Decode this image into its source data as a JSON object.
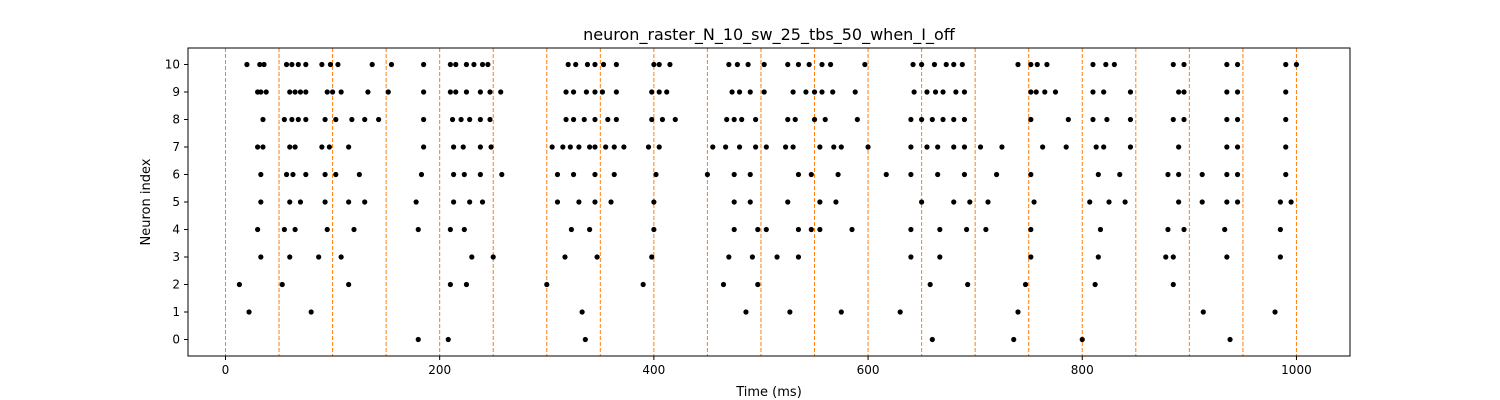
{
  "chart_data": {
    "type": "scatter",
    "title": "neuron_raster_N_10_sw_25_tbs_50_when_I_off",
    "xlabel": "Time (ms)",
    "ylabel": "Neuron index",
    "xlim": [
      -35,
      1050
    ],
    "ylim": [
      -0.6,
      10.6
    ],
    "x_ticks": [
      0,
      200,
      400,
      600,
      800,
      1000
    ],
    "y_ticks": [
      0,
      1,
      2,
      3,
      4,
      5,
      6,
      7,
      8,
      9,
      10
    ],
    "point_color": "#000000",
    "vline_color": "#ff7f0e",
    "vlines": [
      0,
      50,
      100,
      150,
      200,
      250,
      300,
      350,
      400,
      450,
      500,
      550,
      600,
      650,
      700,
      750,
      800,
      850,
      900,
      950,
      1000
    ],
    "series": [
      {
        "neuron": 0,
        "spikes": [
          180,
          208,
          336,
          660,
          736,
          800,
          938
        ]
      },
      {
        "neuron": 1,
        "spikes": [
          22,
          80,
          333,
          486,
          527,
          575,
          630,
          740,
          913,
          980
        ]
      },
      {
        "neuron": 2,
        "spikes": [
          13,
          53,
          115,
          210,
          225,
          300,
          390,
          465,
          497,
          658,
          693,
          747,
          812,
          885
        ]
      },
      {
        "neuron": 3,
        "spikes": [
          33,
          60,
          87,
          108,
          230,
          250,
          317,
          347,
          398,
          470,
          492,
          515,
          535,
          640,
          667,
          752,
          815,
          878,
          885,
          935,
          985
        ]
      },
      {
        "neuron": 4,
        "spikes": [
          30,
          55,
          65,
          95,
          120,
          180,
          210,
          223,
          323,
          340,
          400,
          475,
          497,
          505,
          535,
          547,
          555,
          585,
          640,
          667,
          692,
          710,
          752,
          817,
          880,
          895,
          933,
          985
        ]
      },
      {
        "neuron": 5,
        "spikes": [
          33,
          60,
          70,
          93,
          115,
          130,
          178,
          213,
          228,
          240,
          310,
          330,
          345,
          360,
          400,
          475,
          490,
          525,
          555,
          570,
          650,
          680,
          695,
          712,
          755,
          807,
          825,
          840,
          890,
          912,
          935,
          945,
          985,
          995
        ]
      },
      {
        "neuron": 6,
        "spikes": [
          33,
          57,
          63,
          75,
          93,
          103,
          125,
          183,
          213,
          223,
          238,
          258,
          310,
          325,
          345,
          363,
          402,
          450,
          475,
          490,
          535,
          547,
          572,
          617,
          640,
          665,
          690,
          720,
          752,
          815,
          835,
          880,
          890,
          912,
          935,
          945,
          990
        ]
      },
      {
        "neuron": 7,
        "spikes": [
          30,
          35,
          60,
          65,
          90,
          97,
          115,
          185,
          213,
          222,
          238,
          248,
          305,
          315,
          322,
          330,
          340,
          345,
          355,
          363,
          372,
          395,
          405,
          455,
          467,
          480,
          495,
          505,
          523,
          530,
          555,
          568,
          575,
          600,
          640,
          655,
          665,
          680,
          690,
          705,
          725,
          763,
          785,
          813,
          820,
          845,
          890,
          935,
          945,
          990
        ]
      },
      {
        "neuron": 8,
        "spikes": [
          35,
          55,
          62,
          68,
          75,
          93,
          103,
          118,
          130,
          143,
          185,
          212,
          220,
          228,
          238,
          247,
          318,
          325,
          335,
          345,
          357,
          365,
          398,
          408,
          420,
          468,
          475,
          482,
          495,
          525,
          532,
          550,
          560,
          590,
          640,
          650,
          660,
          670,
          680,
          690,
          752,
          787,
          810,
          823,
          845,
          885,
          895,
          935,
          945,
          990
        ]
      },
      {
        "neuron": 9,
        "spikes": [
          30,
          33,
          38,
          60,
          65,
          70,
          75,
          95,
          100,
          108,
          133,
          152,
          185,
          210,
          215,
          225,
          238,
          247,
          257,
          318,
          325,
          337,
          345,
          352,
          365,
          398,
          405,
          412,
          473,
          480,
          490,
          503,
          530,
          542,
          550,
          557,
          567,
          588,
          643,
          655,
          663,
          670,
          682,
          690,
          752,
          757,
          765,
          775,
          810,
          820,
          845,
          890,
          895,
          935,
          945,
          990
        ]
      },
      {
        "neuron": 10,
        "spikes": [
          20,
          32,
          36,
          57,
          62,
          68,
          75,
          90,
          98,
          105,
          137,
          155,
          185,
          210,
          215,
          225,
          232,
          240,
          245,
          320,
          327,
          338,
          345,
          353,
          365,
          400,
          405,
          415,
          470,
          478,
          488,
          503,
          525,
          535,
          545,
          557,
          565,
          597,
          642,
          650,
          662,
          673,
          680,
          688,
          740,
          752,
          758,
          767,
          810,
          822,
          830,
          885,
          895,
          935,
          945,
          990,
          1000
        ]
      }
    ]
  }
}
